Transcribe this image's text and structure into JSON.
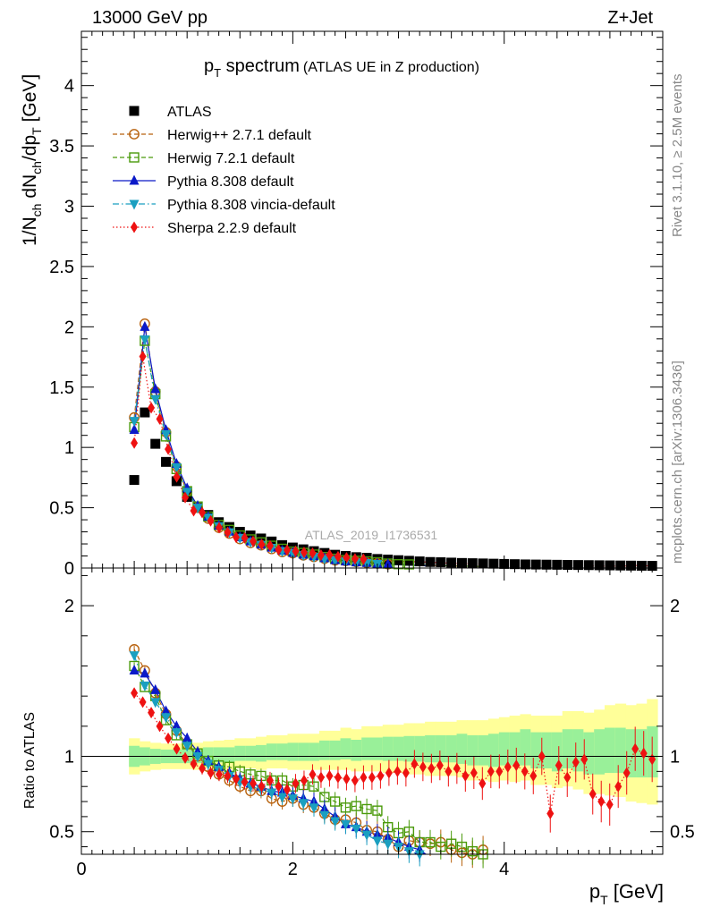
{
  "header": {
    "left": "13000 GeV pp",
    "right": "Z+Jet"
  },
  "side_labels": {
    "rivet": "Rivet 3.1.10, ≥ 2.5M events",
    "mcplots": "mcplots.cern.ch [arXiv:1306.3436]"
  },
  "chart_data": {
    "type": "scatter",
    "title_main": "p",
    "title_sub": "T",
    "title_rest": " spectrum",
    "title_paren": "(ATLAS UE in Z production)",
    "analysis_id": "ATLAS_2019_I1736531",
    "xlabel_main": "p",
    "xlabel_sub": "T",
    "xlabel_unit": " [GeV]",
    "ylabel_top": "1/N ch dN ch/dp T [GeV]",
    "ylabel_bottom": "Ratio to ATLAS",
    "xlim": [
      0,
      5.5
    ],
    "ylim_top": [
      0,
      4.45
    ],
    "ylim_bottom": [
      0.35,
      2.25
    ],
    "x_ticks": [
      "0",
      "2",
      "4"
    ],
    "y_ticks_top": [
      "0",
      "0.5",
      "1",
      "1.5",
      "2",
      "2.5",
      "3",
      "3.5",
      "4"
    ],
    "y_ticks_bottom": [
      "0.5",
      "1",
      "2"
    ],
    "x": [
      0.5,
      0.6,
      0.7,
      0.8,
      0.9,
      1.0,
      1.1,
      1.2,
      1.3,
      1.4,
      1.5,
      1.6,
      1.7,
      1.8,
      1.9,
      2.0,
      2.1,
      2.2,
      2.3,
      2.4,
      2.5,
      2.6,
      2.7,
      2.8,
      2.9,
      3.0,
      3.1,
      3.2,
      3.3,
      3.4,
      3.5,
      3.6,
      3.7,
      3.8,
      3.9,
      4.0,
      4.1,
      4.2,
      4.3,
      4.4,
      4.5,
      4.6,
      4.7,
      4.8,
      4.9,
      5.0,
      5.1,
      5.2,
      5.3,
      5.4
    ],
    "data_values": [
      0.73,
      1.29,
      1.03,
      0.88,
      0.72,
      0.59,
      0.5,
      0.44,
      0.38,
      0.34,
      0.3,
      0.27,
      0.245,
      0.22,
      0.19,
      0.17,
      0.155,
      0.14,
      0.125,
      0.11,
      0.1,
      0.09,
      0.085,
      0.075,
      0.07,
      0.065,
      0.06,
      0.055,
      0.05,
      0.048,
      0.045,
      0.042,
      0.04,
      0.038,
      0.036,
      0.034,
      0.032,
      0.03,
      0.029,
      0.028,
      0.027,
      0.026,
      0.025,
      0.024,
      0.023,
      0.022,
      0.021,
      0.02,
      0.019,
      0.018
    ],
    "band_inner": [
      0.07,
      0.06,
      0.05,
      0.045,
      0.045,
      0.045,
      0.045,
      0.05,
      0.05,
      0.05,
      0.05,
      0.05,
      0.055,
      0.055,
      0.055,
      0.06,
      0.06,
      0.06,
      0.065,
      0.065,
      0.07,
      0.07,
      0.075,
      0.075,
      0.08,
      0.08,
      0.085,
      0.085,
      0.09,
      0.09,
      0.09,
      0.1,
      0.1,
      0.1,
      0.11,
      0.11,
      0.11,
      0.12,
      0.12,
      0.12,
      0.13,
      0.13,
      0.14,
      0.14,
      0.15,
      0.15,
      0.15,
      0.16,
      0.16,
      0.17
    ],
    "band_outer": [
      0.12,
      0.1,
      0.09,
      0.085,
      0.085,
      0.085,
      0.09,
      0.09,
      0.095,
      0.1,
      0.1,
      0.1,
      0.11,
      0.11,
      0.11,
      0.12,
      0.12,
      0.12,
      0.13,
      0.13,
      0.14,
      0.14,
      0.15,
      0.15,
      0.16,
      0.16,
      0.17,
      0.17,
      0.18,
      0.18,
      0.18,
      0.19,
      0.2,
      0.2,
      0.21,
      0.21,
      0.22,
      0.22,
      0.23,
      0.23,
      0.24,
      0.25,
      0.26,
      0.27,
      0.28,
      0.3,
      0.31,
      0.32,
      0.33,
      0.35
    ],
    "band_centre": [
      1.0,
      1.0,
      1.0,
      1.0,
      1.0,
      1.0,
      1.0,
      1.01,
      1.01,
      1.01,
      1.02,
      1.02,
      1.02,
      1.03,
      1.03,
      1.03,
      1.03,
      1.03,
      1.04,
      1.04,
      1.05,
      1.04,
      1.05,
      1.05,
      1.05,
      1.05,
      1.05,
      1.05,
      1.05,
      1.05,
      1.05,
      1.05,
      1.04,
      1.04,
      1.04,
      1.05,
      1.05,
      1.06,
      1.04,
      1.04,
      1.03,
      1.05,
      1.04,
      1.02,
      1.03,
      1.04,
      1.04,
      1.02,
      1.02,
      1.03
    ],
    "legend_position": "top-left",
    "series": [
      {
        "name": "ATLAS",
        "color": "#000000",
        "marker": "square",
        "line": "none",
        "values": [
          0.73,
          1.29,
          1.03,
          0.88,
          0.72,
          0.59,
          0.5,
          0.44,
          0.38,
          0.34,
          0.3,
          0.27,
          0.245,
          0.22,
          0.19,
          0.17,
          0.155,
          0.14,
          0.125,
          0.11,
          0.1,
          0.09,
          0.085,
          0.075,
          0.07,
          0.065,
          0.06,
          0.055,
          0.05,
          0.048,
          0.045,
          0.042,
          0.04,
          0.038,
          0.036,
          0.034,
          0.032,
          0.03,
          0.029,
          0.028,
          0.027,
          0.026,
          0.025,
          0.024,
          0.023,
          0.022,
          0.021,
          0.02,
          0.019,
          0.018
        ]
      },
      {
        "name": "Herwig++ 2.7.1 default",
        "color": "#b8620e",
        "marker": "circle-open",
        "line": "dashed",
        "ratio": [
          1.71,
          1.57,
          1.42,
          1.28,
          1.17,
          1.08,
          1.0,
          0.93,
          0.88,
          0.84,
          0.8,
          0.77,
          0.77,
          0.72,
          0.7,
          0.72,
          0.68,
          0.66,
          0.62,
          0.58,
          0.58,
          0.56,
          0.51,
          0.5,
          0.45,
          0.4,
          0.44,
          0.43,
          0.42,
          0.43,
          0.38,
          0.36,
          0.35,
          0.38
        ]
      },
      {
        "name": "Herwig 7.2.1 default",
        "color": "#4a9a0a",
        "marker": "square-open",
        "line": "dashed",
        "ratio": [
          1.6,
          1.46,
          1.4,
          1.24,
          1.14,
          1.08,
          1.02,
          0.97,
          0.94,
          0.93,
          0.9,
          0.88,
          0.87,
          0.84,
          0.84,
          0.8,
          0.81,
          0.8,
          0.73,
          0.7,
          0.66,
          0.67,
          0.65,
          0.64,
          0.53,
          0.49,
          0.5,
          0.43,
          0.43,
          0.4,
          0.42,
          0.4,
          0.37,
          0.35
        ]
      },
      {
        "name": "Pythia 8.308 default",
        "color": "#0b19c8",
        "marker": "triangle-up",
        "line": "solid",
        "ratio": [
          1.57,
          1.55,
          1.44,
          1.3,
          1.2,
          1.12,
          1.03,
          0.97,
          0.93,
          0.89,
          0.85,
          0.82,
          0.8,
          0.77,
          0.76,
          0.74,
          0.72,
          0.7,
          0.65,
          0.6,
          0.55,
          0.53,
          0.5,
          0.48,
          0.46,
          0.43,
          0.4,
          0.38,
          0.33
        ]
      },
      {
        "name": "Pythia 8.308 vincia-default",
        "color": "#1a9fc0",
        "marker": "triangle-down",
        "line": "dashdot",
        "ratio": [
          1.67,
          1.47,
          1.36,
          1.26,
          1.16,
          1.07,
          1.0,
          0.95,
          0.91,
          0.87,
          0.83,
          0.8,
          0.78,
          0.76,
          0.73,
          0.72,
          0.69,
          0.66,
          0.61,
          0.57,
          0.55,
          0.52,
          0.48,
          0.44,
          0.42,
          0.4,
          0.37,
          0.35
        ]
      },
      {
        "name": "Sherpa 2.2.9 default",
        "color": "#ee1111",
        "marker": "diamond",
        "line": "dotted",
        "ratio": [
          1.42,
          1.36,
          1.29,
          1.2,
          1.12,
          1.05,
          0.99,
          0.95,
          0.92,
          0.89,
          0.88,
          0.87,
          0.85,
          0.83,
          0.82,
          0.8,
          0.84,
          0.8,
          0.78,
          0.82,
          0.84,
          0.88,
          0.86,
          0.87,
          0.86,
          0.85,
          0.84,
          0.86,
          0.86,
          0.87,
          0.89,
          0.9,
          0.89,
          0.95,
          0.93,
          0.92,
          0.94,
          0.9,
          0.92,
          0.87,
          0.89,
          0.82,
          0.9,
          0.9,
          0.93,
          0.94,
          0.9,
          0.87,
          1.0,
          0.62,
          0.94,
          0.86,
          0.96,
          0.98,
          0.75,
          0.7,
          0.68,
          0.8,
          0.89,
          1.05,
          1.02,
          0.98
        ]
      }
    ]
  }
}
